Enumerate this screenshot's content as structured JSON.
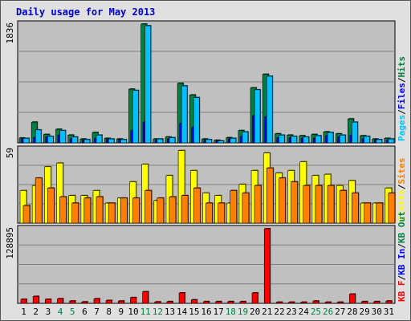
{
  "title": "Daily usage for May 2013",
  "colors": {
    "pages": "#00c0ff",
    "files": "#0000ff",
    "hits": "#008040",
    "visits": "#ffff00",
    "sites": "#ff8000",
    "kbin": "#0000ff",
    "kbout": "#008040",
    "kbf": "#ff0000",
    "panel": "#c0c0c0",
    "grid": "#808080",
    "weekend": "#008040",
    "weekday": "#000000"
  },
  "chart_data": [
    {
      "type": "bar",
      "panel": "hits-files-pages",
      "ymax_label": "1836",
      "ylim": [
        0,
        1836
      ],
      "legend": [
        {
          "text": "Pages",
          "color": "#00c0ff"
        },
        {
          "text": "Files",
          "color": "#0000ff"
        },
        {
          "text": "Hits",
          "color": "#008040"
        }
      ],
      "legend_sep": "/",
      "categories": [
        "1",
        "2",
        "3",
        "4",
        "5",
        "6",
        "7",
        "8",
        "9",
        "10",
        "11",
        "12",
        "13",
        "14",
        "15",
        "16",
        "17",
        "18",
        "19",
        "20",
        "21",
        "22",
        "23",
        "24",
        "25",
        "26",
        "27",
        "28",
        "29",
        "30",
        "31"
      ],
      "series": [
        {
          "name": "Hits",
          "values": [
            75,
            320,
            130,
            210,
            120,
            60,
            160,
            70,
            60,
            830,
            1836,
            60,
            90,
            920,
            740,
            60,
            40,
            80,
            190,
            850,
            1060,
            140,
            120,
            110,
            130,
            170,
            140,
            370,
            110,
            60,
            70
          ]
        },
        {
          "name": "Files",
          "values": [
            60,
            80,
            90,
            120,
            60,
            40,
            70,
            50,
            50,
            190,
            320,
            40,
            60,
            300,
            240,
            40,
            30,
            60,
            100,
            420,
            400,
            80,
            80,
            70,
            70,
            110,
            90,
            120,
            60,
            40,
            40
          ]
        },
        {
          "name": "Pages",
          "values": [
            70,
            200,
            100,
            190,
            90,
            50,
            120,
            60,
            50,
            810,
            1810,
            60,
            80,
            880,
            700,
            50,
            30,
            70,
            170,
            820,
            1030,
            120,
            100,
            90,
            110,
            160,
            120,
            320,
            100,
            50,
            60
          ]
        }
      ]
    },
    {
      "type": "bar",
      "panel": "visits-sites",
      "ymax_label": "59",
      "ylim": [
        0,
        59
      ],
      "legend": [
        {
          "text": "Visits",
          "color": "#ffff00"
        },
        {
          "text": "Sites",
          "color": "#ff8000"
        }
      ],
      "legend_sep": "/",
      "categories": [
        "1",
        "2",
        "3",
        "4",
        "5",
        "6",
        "7",
        "8",
        "9",
        "10",
        "11",
        "12",
        "13",
        "14",
        "15",
        "16",
        "17",
        "18",
        "19",
        "20",
        "21",
        "22",
        "23",
        "24",
        "25",
        "26",
        "27",
        "28",
        "29",
        "30",
        "31"
      ],
      "series": [
        {
          "name": "Visits",
          "values": [
            26,
            30,
            45,
            48,
            22,
            22,
            26,
            16,
            20,
            33,
            47,
            18,
            38,
            58,
            42,
            24,
            22,
            16,
            31,
            42,
            56,
            40,
            42,
            49,
            38,
            39,
            30,
            34,
            16,
            16,
            28
          ]
        },
        {
          "name": "Sites",
          "values": [
            14,
            36,
            28,
            21,
            16,
            20,
            21,
            16,
            20,
            20,
            26,
            20,
            21,
            22,
            28,
            16,
            16,
            26,
            24,
            30,
            44,
            36,
            33,
            30,
            30,
            30,
            26,
            24,
            16,
            16,
            24
          ]
        }
      ]
    },
    {
      "type": "bar",
      "panel": "kbytes",
      "ymax_label": "128895",
      "ylim": [
        0,
        128895
      ],
      "legend": [
        {
          "text": "KB F",
          "color": "#ff0000"
        },
        {
          "text": "KB In",
          "color": "#0000ff"
        },
        {
          "text": "KB Out",
          "color": "#008040"
        }
      ],
      "legend_sep": "/",
      "categories": [
        "1",
        "2",
        "3",
        "4",
        "5",
        "6",
        "7",
        "8",
        "9",
        "10",
        "11",
        "12",
        "13",
        "14",
        "15",
        "16",
        "17",
        "18",
        "19",
        "20",
        "21",
        "22",
        "23",
        "24",
        "25",
        "26",
        "27",
        "28",
        "29",
        "30",
        "31"
      ],
      "series": [
        {
          "name": "KB F",
          "values": [
            7000,
            12000,
            7000,
            8000,
            4000,
            2500,
            8000,
            5000,
            4000,
            10000,
            20000,
            2500,
            3000,
            18000,
            6000,
            3000,
            3000,
            3000,
            3000,
            18000,
            128895,
            2000,
            2000,
            2000,
            4000,
            2000,
            2000,
            16000,
            3000,
            3000,
            4000
          ]
        }
      ]
    }
  ],
  "xaxis": {
    "labels": [
      "1",
      "2",
      "3",
      "4",
      "5",
      "6",
      "7",
      "8",
      "9",
      "10",
      "11",
      "12",
      "13",
      "14",
      "15",
      "16",
      "17",
      "18",
      "19",
      "20",
      "21",
      "22",
      "23",
      "24",
      "25",
      "26",
      "27",
      "28",
      "29",
      "30",
      "31"
    ],
    "weekend_days": [
      "4",
      "5",
      "11",
      "12",
      "18",
      "19",
      "25",
      "26"
    ]
  }
}
